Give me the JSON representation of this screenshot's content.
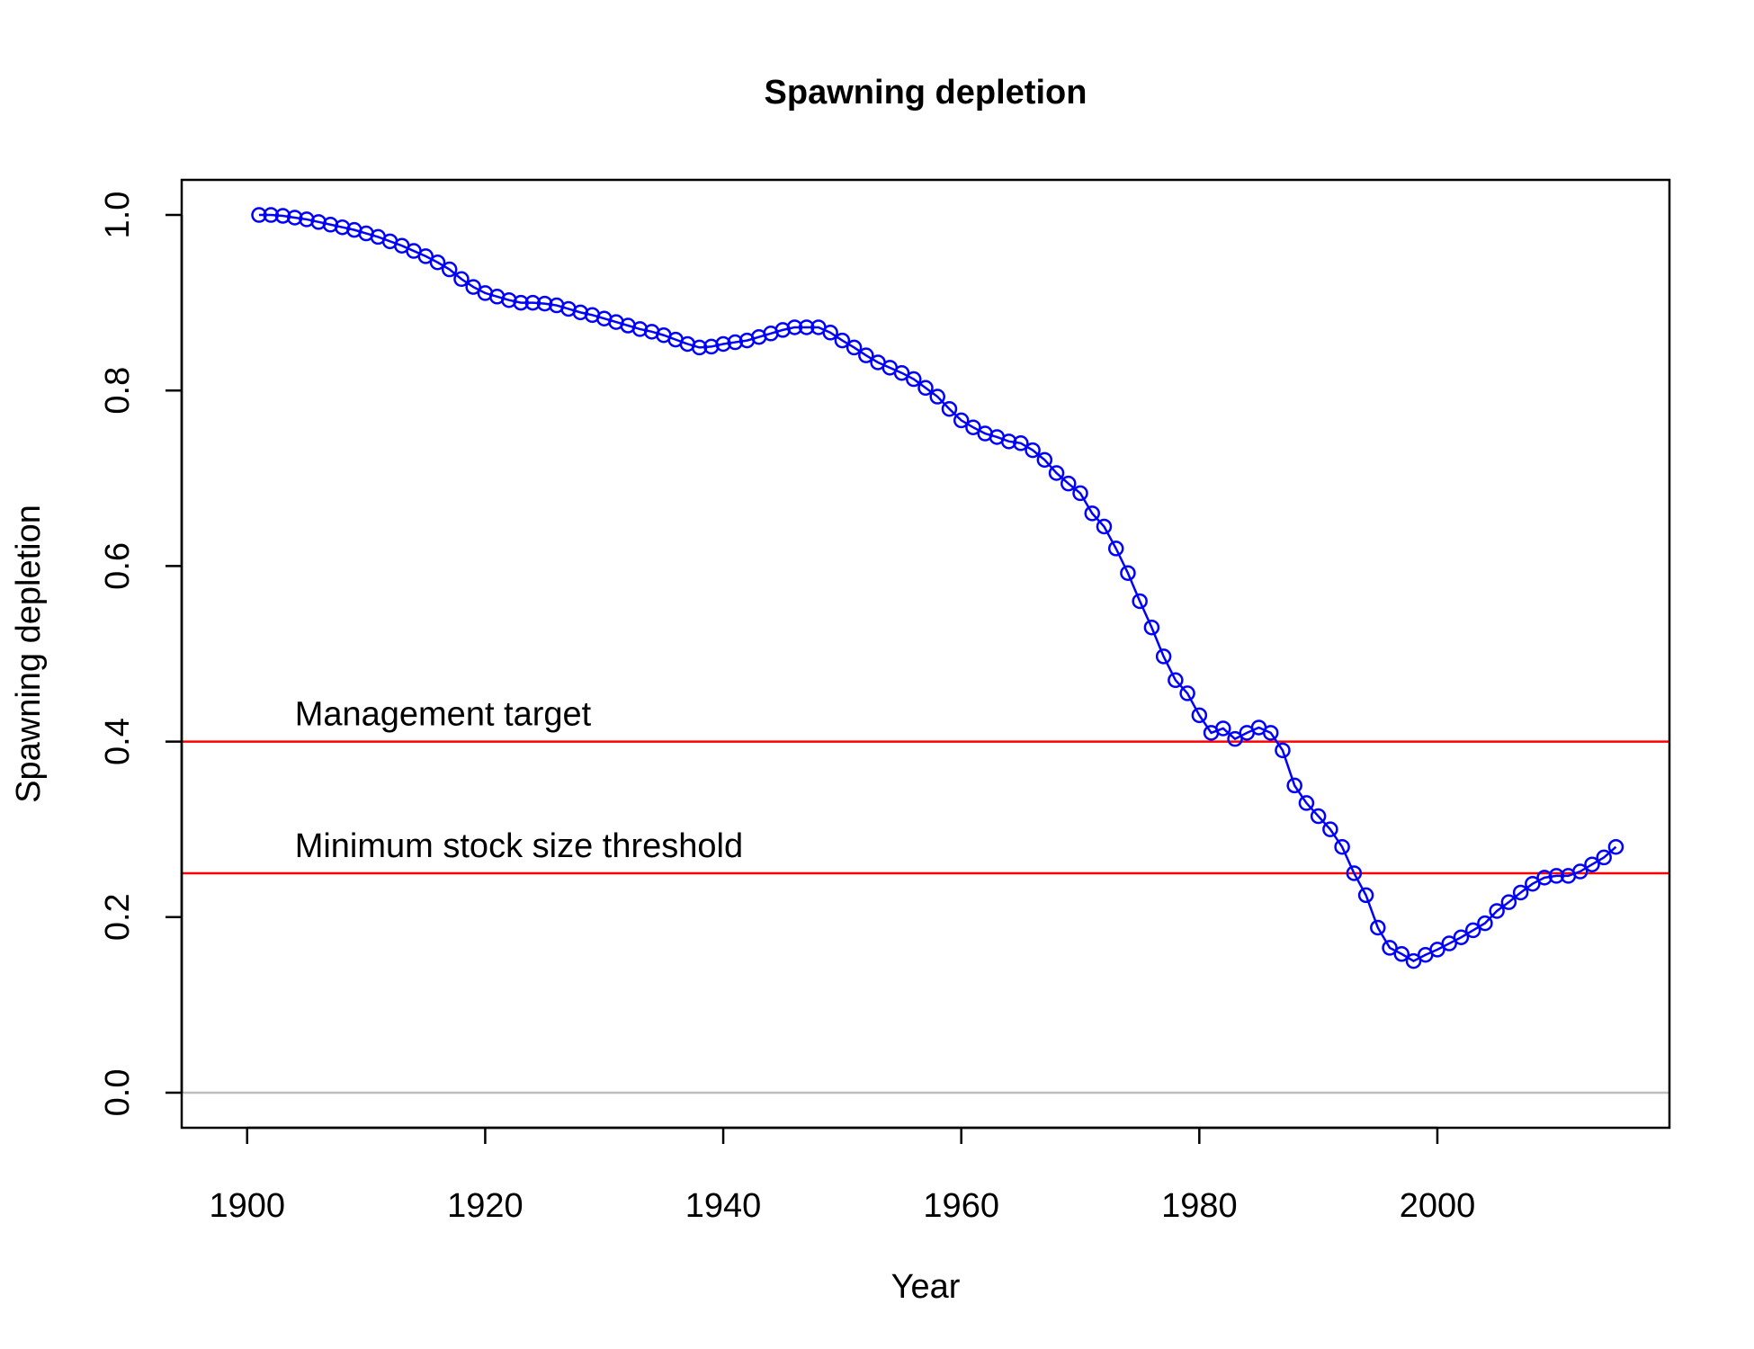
{
  "chart_data": {
    "type": "line",
    "title": "Spawning depletion",
    "xlabel": "Year",
    "ylabel": "Spawning depletion",
    "xlim": [
      1894.5,
      2019.5
    ],
    "ylim": [
      -0.04,
      1.04
    ],
    "x_ticks": [
      1900,
      1920,
      1940,
      1960,
      1980,
      2000
    ],
    "y_ticks": [
      0.0,
      0.2,
      0.4,
      0.6,
      0.8,
      1.0
    ],
    "y_tick_labels": [
      "0.0",
      "0.2",
      "0.4",
      "0.6",
      "0.8",
      "1.0"
    ],
    "grid": false,
    "series": [
      {
        "color": "#0000ff",
        "markers": "open-circle",
        "x": [
          1901,
          1902,
          1903,
          1904,
          1905,
          1906,
          1907,
          1908,
          1909,
          1910,
          1911,
          1912,
          1913,
          1914,
          1915,
          1916,
          1917,
          1918,
          1919,
          1920,
          1921,
          1922,
          1923,
          1924,
          1925,
          1926,
          1927,
          1928,
          1929,
          1930,
          1931,
          1932,
          1933,
          1934,
          1935,
          1936,
          1937,
          1938,
          1939,
          1940,
          1941,
          1942,
          1943,
          1944,
          1945,
          1946,
          1947,
          1948,
          1949,
          1950,
          1951,
          1952,
          1953,
          1954,
          1955,
          1956,
          1957,
          1958,
          1959,
          1960,
          1961,
          1962,
          1963,
          1964,
          1965,
          1966,
          1967,
          1968,
          1969,
          1970,
          1971,
          1972,
          1973,
          1974,
          1975,
          1976,
          1977,
          1978,
          1979,
          1980,
          1981,
          1982,
          1983,
          1984,
          1985,
          1986,
          1987,
          1988,
          1989,
          1990,
          1991,
          1992,
          1993,
          1994,
          1995,
          1996,
          1997,
          1998,
          1999,
          2000,
          2001,
          2002,
          2003,
          2004,
          2005,
          2006,
          2007,
          2008,
          2009,
          2010,
          2011,
          2012,
          2013,
          2014,
          2015
        ],
        "y": [
          1.0,
          1.0,
          0.999,
          0.997,
          0.995,
          0.992,
          0.989,
          0.986,
          0.983,
          0.979,
          0.975,
          0.97,
          0.965,
          0.959,
          0.953,
          0.946,
          0.938,
          0.927,
          0.918,
          0.911,
          0.907,
          0.903,
          0.9,
          0.9,
          0.899,
          0.897,
          0.893,
          0.889,
          0.886,
          0.882,
          0.878,
          0.874,
          0.87,
          0.867,
          0.863,
          0.858,
          0.853,
          0.849,
          0.85,
          0.853,
          0.855,
          0.857,
          0.861,
          0.865,
          0.869,
          0.872,
          0.872,
          0.872,
          0.866,
          0.857,
          0.849,
          0.84,
          0.832,
          0.826,
          0.82,
          0.813,
          0.803,
          0.793,
          0.779,
          0.766,
          0.758,
          0.751,
          0.747,
          0.742,
          0.74,
          0.732,
          0.721,
          0.706,
          0.694,
          0.683,
          0.66,
          0.645,
          0.62,
          0.592,
          0.56,
          0.53,
          0.497,
          0.47,
          0.455,
          0.43,
          0.41,
          0.415,
          0.403,
          0.41,
          0.416,
          0.41,
          0.39,
          0.35,
          0.33,
          0.315,
          0.3,
          0.28,
          0.25,
          0.225,
          0.188,
          0.165,
          0.158,
          0.15,
          0.157,
          0.163,
          0.17,
          0.177,
          0.185,
          0.193,
          0.207,
          0.217,
          0.228,
          0.238,
          0.245,
          0.247,
          0.247,
          0.252,
          0.26,
          0.268,
          0.28
        ]
      }
    ],
    "reference_lines": [
      {
        "y": 0.4,
        "label": "Management target",
        "color": "#ff0000"
      },
      {
        "y": 0.25,
        "label": "Minimum stock size threshold",
        "color": "#ff0000"
      },
      {
        "y": 0.0,
        "label": "",
        "color": "#bebebe"
      }
    ],
    "reference_label_x": 1904
  }
}
